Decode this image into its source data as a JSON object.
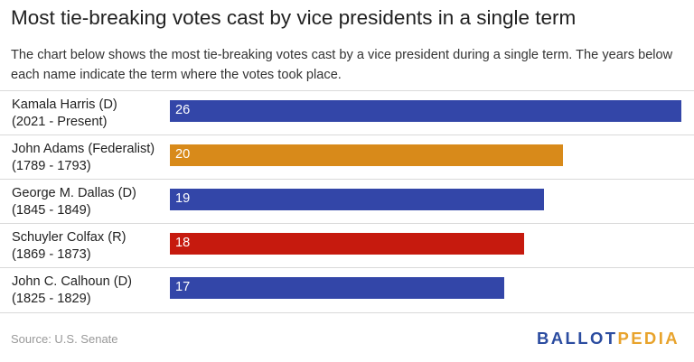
{
  "header": {
    "title": "Most tie-breaking votes cast by vice presidents in a single term",
    "subtitle": "The chart below shows the most tie-breaking votes cast by a vice president during a single term. The years below each name indicate the term where the votes took place."
  },
  "chart_data": {
    "type": "bar",
    "orientation": "horizontal",
    "title": "Most tie-breaking votes cast by vice presidents in a single term",
    "xlabel": "",
    "ylabel": "",
    "xlim": [
      0,
      26
    ],
    "grid": false,
    "legend": "none",
    "categories": [
      {
        "name": "Kamala Harris (D)",
        "term": "(2021 - Present)"
      },
      {
        "name": "John Adams (Federalist)",
        "term": "(1789 - 1793)"
      },
      {
        "name": "George M. Dallas (D)",
        "term": "(1845 - 1849)"
      },
      {
        "name": "Schuyler Colfax (R)",
        "term": "(1869 - 1873)"
      },
      {
        "name": "John C. Calhoun (D)",
        "term": "(1825 - 1829)"
      }
    ],
    "values": [
      26,
      20,
      19,
      18,
      17
    ],
    "colors": [
      "#3346a8",
      "#d88a1a",
      "#3346a8",
      "#c61a0e",
      "#3346a8"
    ]
  },
  "footer": {
    "source": "Source: U.S. Senate",
    "logo_part1": "BALLOT",
    "logo_part2": "PEDIA"
  }
}
